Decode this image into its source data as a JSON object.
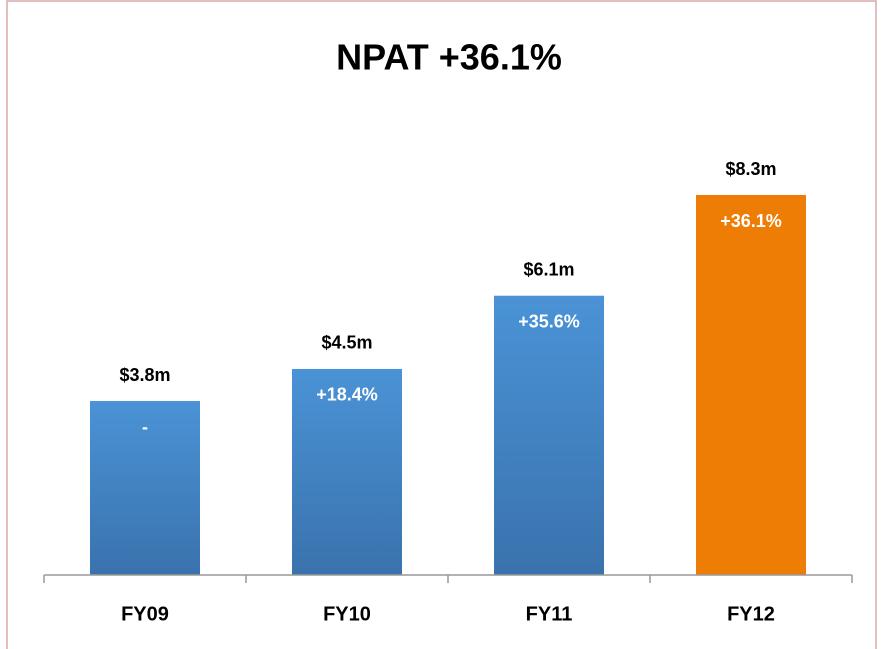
{
  "chart_data": {
    "type": "bar",
    "title": "NPAT +36.1%",
    "categories": [
      "FY09",
      "FY10",
      "FY11",
      "FY12"
    ],
    "values": [
      3.8,
      4.5,
      6.1,
      8.3
    ],
    "value_labels": [
      "$3.8m",
      "$4.5m",
      "$6.1m",
      "$8.3m"
    ],
    "annotations": [
      "-",
      "+18.4%",
      "+35.6%",
      "+36.1%"
    ],
    "colors": [
      "#4189cf",
      "#4189cf",
      "#4189cf",
      "#ed7d05"
    ]
  }
}
